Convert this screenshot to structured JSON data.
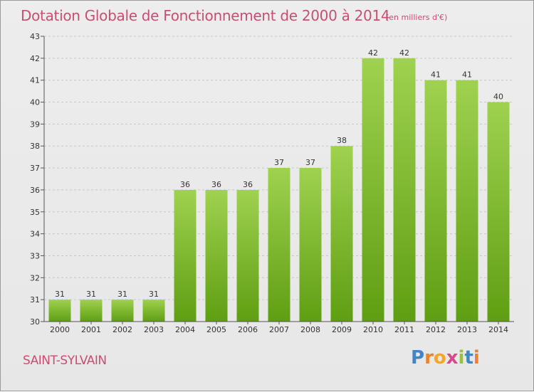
{
  "header": {
    "title": "Dotation Globale de Fonctionnement de 2000 à 2014",
    "unit": "(en milliers d'€)"
  },
  "footer": {
    "commune": "SAINT-SYLVAIN",
    "logo_text": "Proxiti",
    "logo_letter_colors": [
      "#3f86c6",
      "#e9832f",
      "#f2a62a",
      "#d64a8c",
      "#9bc03b",
      "#3f86c6",
      "#e9832f"
    ]
  },
  "colors": {
    "bar_top": "#9fd24f",
    "bar_bottom": "#5f9e12",
    "title": "#c84f71",
    "grid": "#c8c8c8",
    "axis_text": "#333333"
  },
  "chart_data": {
    "type": "bar",
    "title": "Dotation Globale de Fonctionnement de 2000 à 2014",
    "xlabel": "",
    "ylabel": "",
    "ylim": [
      30,
      43
    ],
    "yticks": [
      30,
      31,
      32,
      33,
      34,
      35,
      36,
      37,
      38,
      39,
      40,
      41,
      42,
      43
    ],
    "grid": true,
    "categories": [
      "2000",
      "2001",
      "2002",
      "2003",
      "2004",
      "2005",
      "2006",
      "2007",
      "2008",
      "2009",
      "2010",
      "2011",
      "2012",
      "2013",
      "2014"
    ],
    "values": [
      31,
      31,
      31,
      31,
      36,
      36,
      36,
      37,
      37,
      38,
      42,
      42,
      41,
      41,
      40
    ]
  }
}
